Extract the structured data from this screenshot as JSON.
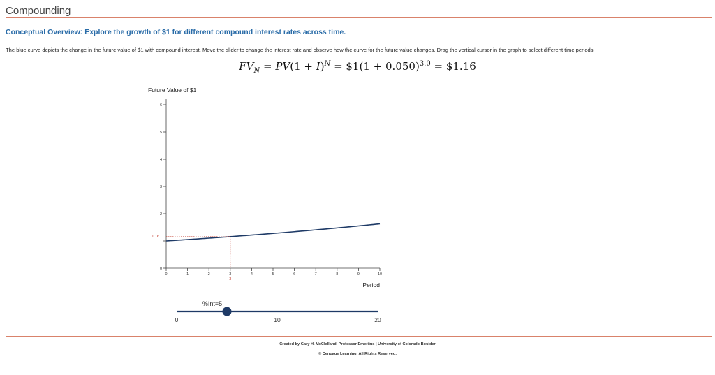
{
  "app": {
    "title": "Compounding"
  },
  "header": {
    "subtitle": "Conceptual Overview: Explore the growth of $1 for different compound interest rates across time.",
    "description": "The blue curve depicts the change in the future value of $1 with compound interest. Move the slider to change the interest rate and observe how the curve for the future value changes. Drag the vertical cursor in the graph to select different time periods."
  },
  "formula": {
    "lhs_var": "FV",
    "lhs_sub": "N",
    "mid1": " = ",
    "pv_var": "PV",
    "mid2": "(1 + ",
    "i_var": "I",
    "mid3": ")",
    "n_sup": "N",
    "mid4": " = $1(1 + 0.050)",
    "exp_value": "3.0",
    "result": " = $1.16"
  },
  "chart_data": {
    "type": "line",
    "ylabel": "Future Value of $1",
    "xlabel": "Period",
    "xlim": [
      0,
      10
    ],
    "ylim": [
      0,
      6
    ],
    "x_ticks": [
      0,
      1,
      2,
      3,
      4,
      5,
      6,
      7,
      8,
      9,
      10
    ],
    "y_ticks": [
      0,
      1,
      2,
      3,
      4,
      5,
      6
    ],
    "rate": 0.05,
    "principal": 1,
    "cursor_period": 3,
    "cursor_period_label": "3",
    "cursor_value_label": "1.16",
    "grid": false,
    "colors": {
      "curve": "#1e3a66",
      "cursor": "#c0392b"
    }
  },
  "slider": {
    "label": "%Int=5",
    "min": 0,
    "max": 20,
    "value": 5,
    "ticks": [
      "0",
      "10",
      "20"
    ]
  },
  "footer": {
    "credit": "Created by Gary H. McClelland, Professor Emeritus | University of Colorado Boulder",
    "copyright": "© Cengage Learning. All Rights Reserved."
  }
}
